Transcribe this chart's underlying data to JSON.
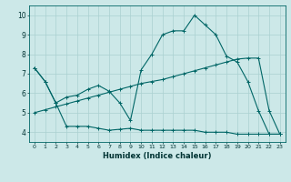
{
  "xlabel": "Humidex (Indice chaleur)",
  "bg_color": "#cce8e8",
  "grid_color": "#aad0d0",
  "line_color": "#006666",
  "xlim": [
    -0.5,
    23.5
  ],
  "ylim": [
    3.5,
    10.5
  ],
  "xticks": [
    0,
    1,
    2,
    3,
    4,
    5,
    6,
    7,
    8,
    9,
    10,
    11,
    12,
    13,
    14,
    15,
    16,
    17,
    18,
    19,
    20,
    21,
    22,
    23
  ],
  "yticks": [
    4,
    5,
    6,
    7,
    8,
    9,
    10
  ],
  "line1_x": [
    0,
    1,
    2,
    3,
    4,
    5,
    6,
    7,
    8,
    9,
    10,
    11,
    12,
    13,
    14,
    15,
    16,
    17,
    18,
    19,
    20,
    21,
    22,
    23
  ],
  "line1_y": [
    7.3,
    6.6,
    5.5,
    4.3,
    4.3,
    4.3,
    4.2,
    4.1,
    4.15,
    4.2,
    4.1,
    4.1,
    4.1,
    4.1,
    4.1,
    4.1,
    4.0,
    4.0,
    4.0,
    3.9,
    3.9,
    3.9,
    3.9,
    3.9
  ],
  "line2_x": [
    0,
    1,
    2,
    3,
    4,
    5,
    6,
    7,
    8,
    9,
    10,
    11,
    12,
    13,
    14,
    15,
    16,
    17,
    18,
    19,
    20,
    21,
    22,
    23
  ],
  "line2_y": [
    7.3,
    6.6,
    5.5,
    5.8,
    5.9,
    6.2,
    6.4,
    6.1,
    5.5,
    4.6,
    7.2,
    8.0,
    9.0,
    9.2,
    9.2,
    10.0,
    9.5,
    9.0,
    7.9,
    7.6,
    6.6,
    5.1,
    3.9,
    3.9
  ],
  "line3_x": [
    0,
    1,
    2,
    3,
    4,
    5,
    6,
    7,
    8,
    9,
    10,
    11,
    12,
    13,
    14,
    15,
    16,
    17,
    18,
    19,
    20,
    21,
    22,
    23
  ],
  "line3_y": [
    5.0,
    5.15,
    5.3,
    5.45,
    5.6,
    5.75,
    5.9,
    6.05,
    6.2,
    6.35,
    6.5,
    6.6,
    6.7,
    6.85,
    7.0,
    7.15,
    7.3,
    7.45,
    7.6,
    7.75,
    7.8,
    7.8,
    5.1,
    3.9
  ]
}
